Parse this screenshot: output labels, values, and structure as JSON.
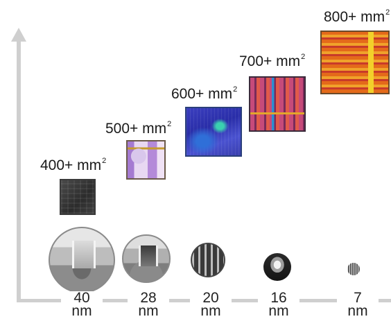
{
  "colors": {
    "axis": "#cfcfcf",
    "text": "#1a1a1a"
  },
  "y_axis": {
    "icon": "up-arrow-icon"
  },
  "nodes": [
    {
      "value": "40",
      "unit": "nm"
    },
    {
      "value": "28",
      "unit": "nm"
    },
    {
      "value": "20",
      "unit": "nm"
    },
    {
      "value": "16",
      "unit": "nm"
    },
    {
      "value": "7",
      "unit": "nm"
    }
  ],
  "dies": [
    {
      "area": "400+ mm",
      "exponent": "2"
    },
    {
      "area": "500+ mm",
      "exponent": "2"
    },
    {
      "area": "600+ mm",
      "exponent": "2"
    },
    {
      "area": "700+ mm",
      "exponent": "2"
    },
    {
      "area": "800+ mm",
      "exponent": "2"
    }
  ]
}
